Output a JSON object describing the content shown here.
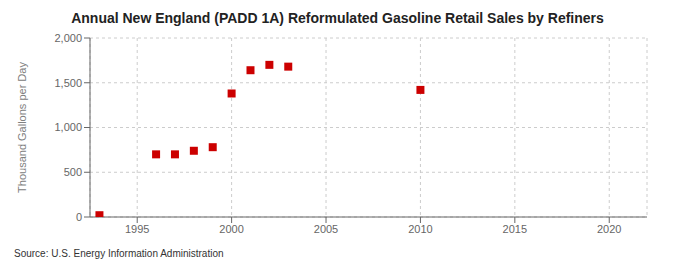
{
  "chart_data": {
    "type": "scatter",
    "title": "Annual New England (PADD 1A) Reformulated Gasoline Retail Sales by Refiners",
    "ylabel": "Thousand Gallons per Day",
    "source": "Source: U.S. Energy Information Administration",
    "x": [
      1993,
      1996,
      1997,
      1998,
      1999,
      2000,
      2001,
      2002,
      2003,
      2010
    ],
    "values": [
      20,
      700,
      700,
      740,
      780,
      1380,
      1640,
      1700,
      1680,
      1420
    ],
    "color": "#cc0000",
    "marker": "square",
    "xlim": [
      1992.5,
      2022
    ],
    "ylim": [
      0,
      2000
    ],
    "xticks": [
      1995,
      2000,
      2005,
      2010,
      2015,
      2020
    ],
    "yticks": [
      0,
      500,
      {
        "value": 1000,
        "label": "1,000"
      },
      {
        "value": 1500,
        "label": "1,500"
      },
      {
        "value": 2000,
        "label": "2,000"
      }
    ],
    "grid": true
  }
}
